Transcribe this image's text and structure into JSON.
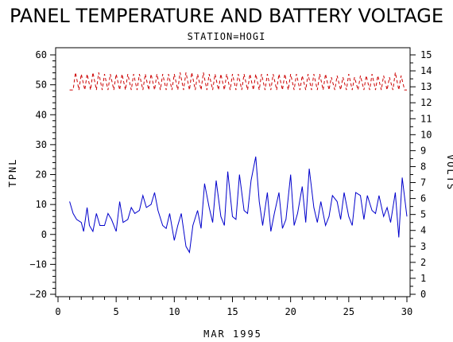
{
  "chart_data": {
    "type": "line",
    "title": "PANEL TEMPERATURE AND BATTERY VOLTAGE",
    "subtitle": "STATION=HOGI",
    "xlabel": "MAR 1995",
    "ylabel_left": "TPNL",
    "ylabel_right": "VOLTS",
    "xlim": [
      0,
      30
    ],
    "ylim_left": [
      -20,
      60
    ],
    "ylim_right": [
      0,
      15
    ],
    "x_ticks": [
      0,
      5,
      10,
      15,
      20,
      25,
      30
    ],
    "x_tick_labels": [
      "0",
      "5",
      "10",
      "15",
      "20",
      "25",
      "30"
    ],
    "y_left_ticks": [
      -20,
      -10,
      0,
      10,
      20,
      30,
      40,
      50,
      60
    ],
    "y_left_tick_labels": [
      "−20",
      "−10",
      "0",
      "10",
      "20",
      "30",
      "40",
      "50",
      "60"
    ],
    "y_right_ticks": [
      0,
      1,
      2,
      3,
      4,
      5,
      6,
      7,
      8,
      9,
      10,
      11,
      12,
      13,
      14,
      15
    ],
    "y_right_tick_labels": [
      "0",
      "1",
      "2",
      "3",
      "4",
      "5",
      "6",
      "7",
      "8",
      "9",
      "10",
      "11",
      "12",
      "13",
      "14",
      "15"
    ],
    "series": [
      {
        "axis": "left",
        "color": "#0000cc",
        "style": "solid",
        "x": [
          1.0,
          1.3,
          1.6,
          2.0,
          2.2,
          2.5,
          2.7,
          3.0,
          3.3,
          3.6,
          4.0,
          4.3,
          4.6,
          5.0,
          5.3,
          5.6,
          6.0,
          6.3,
          6.6,
          7.0,
          7.3,
          7.6,
          8.0,
          8.3,
          8.6,
          9.0,
          9.3,
          9.6,
          10.0,
          10.3,
          10.6,
          11.0,
          11.3,
          11.6,
          12.0,
          12.3,
          12.6,
          13.0,
          13.3,
          13.6,
          14.0,
          14.3,
          14.6,
          15.0,
          15.3,
          15.6,
          16.0,
          16.3,
          16.6,
          17.0,
          17.3,
          17.6,
          18.0,
          18.3,
          18.6,
          19.0,
          19.3,
          19.6,
          20.0,
          20.3,
          20.6,
          21.0,
          21.3,
          21.6,
          22.0,
          22.3,
          22.6,
          23.0,
          23.3,
          23.6,
          24.0,
          24.3,
          24.6,
          25.0,
          25.3,
          25.6,
          26.0,
          26.3,
          26.6,
          27.0,
          27.3,
          27.6,
          28.0,
          28.3,
          28.6,
          29.0,
          29.3,
          29.6,
          30.0
        ],
        "y": [
          11,
          7,
          5,
          4,
          1,
          9,
          3,
          1,
          7,
          3,
          3,
          7,
          5,
          1,
          11,
          4,
          5,
          9,
          7,
          8,
          13,
          9,
          10,
          14,
          8,
          3,
          2,
          7,
          -2,
          3,
          7,
          -4,
          -6,
          3,
          8,
          2,
          17,
          9,
          4,
          18,
          6,
          3,
          21,
          6,
          5,
          20,
          8,
          7,
          18,
          26,
          11,
          3,
          14,
          1,
          7,
          14,
          2,
          5,
          20,
          3,
          7,
          16,
          4,
          22,
          9,
          4,
          11,
          3,
          6,
          13,
          11,
          5,
          14,
          6,
          3,
          14,
          13,
          5,
          13,
          8,
          7,
          13,
          6,
          9,
          4,
          14,
          -1,
          19,
          6
        ],
        "values_note_hidden": ""
      },
      {
        "axis": "right",
        "color": "#cc0000",
        "style": "dashed",
        "x": [
          1.0,
          1.3,
          1.5,
          1.8,
          2.0,
          2.3,
          2.5,
          2.8,
          3.0,
          3.3,
          3.5,
          3.8,
          4.0,
          4.3,
          4.5,
          4.8,
          5.0,
          5.3,
          5.5,
          5.8,
          6.0,
          6.3,
          6.5,
          6.8,
          7.0,
          7.3,
          7.5,
          7.8,
          8.0,
          8.3,
          8.5,
          8.8,
          9.0,
          9.3,
          9.5,
          9.8,
          10.0,
          10.3,
          10.5,
          10.8,
          11.0,
          11.3,
          11.5,
          11.8,
          12.0,
          12.3,
          12.5,
          12.8,
          13.0,
          13.3,
          13.5,
          13.8,
          14.0,
          14.3,
          14.5,
          14.8,
          15.0,
          15.3,
          15.5,
          15.8,
          16.0,
          16.3,
          16.5,
          16.8,
          17.0,
          17.3,
          17.5,
          17.8,
          18.0,
          18.3,
          18.5,
          18.8,
          19.0,
          19.3,
          19.5,
          19.8,
          20.0,
          20.3,
          20.5,
          20.8,
          21.0,
          21.3,
          21.5,
          21.8,
          22.0,
          22.3,
          22.5,
          22.8,
          23.0,
          23.3,
          23.5,
          23.8,
          24.0,
          24.3,
          24.5,
          24.8,
          25.0,
          25.3,
          25.5,
          25.8,
          26.0,
          26.3,
          26.5,
          26.8,
          27.0,
          27.3,
          27.5,
          27.8,
          28.0,
          28.3,
          28.5,
          28.8,
          29.0,
          29.3,
          29.5,
          29.8,
          30.0
        ],
        "y": [
          12.8,
          12.8,
          13.9,
          12.8,
          13.8,
          12.8,
          13.8,
          12.8,
          13.9,
          12.8,
          13.9,
          12.8,
          13.8,
          12.8,
          13.8,
          12.8,
          13.8,
          12.8,
          13.8,
          12.8,
          13.8,
          12.8,
          13.8,
          12.8,
          13.8,
          12.8,
          13.8,
          12.8,
          13.8,
          12.8,
          13.8,
          12.8,
          13.8,
          12.8,
          13.8,
          12.8,
          13.8,
          12.8,
          13.9,
          12.8,
          13.9,
          12.8,
          13.9,
          12.8,
          13.8,
          12.8,
          13.9,
          12.8,
          13.8,
          12.8,
          13.8,
          12.8,
          13.8,
          12.8,
          13.8,
          12.8,
          13.8,
          12.8,
          13.8,
          12.8,
          13.8,
          12.8,
          13.8,
          12.8,
          13.8,
          12.8,
          13.8,
          12.8,
          13.8,
          12.8,
          13.8,
          12.8,
          13.8,
          12.8,
          13.8,
          12.8,
          13.8,
          12.8,
          13.8,
          12.8,
          13.7,
          12.8,
          13.8,
          12.8,
          13.8,
          12.8,
          13.8,
          12.8,
          13.8,
          12.8,
          13.6,
          12.8,
          13.7,
          12.8,
          13.6,
          12.8,
          13.8,
          12.8,
          13.6,
          12.8,
          13.7,
          12.8,
          13.7,
          12.8,
          13.8,
          12.8,
          13.7,
          12.8,
          13.7,
          12.8,
          13.6,
          12.8,
          13.9,
          12.8,
          13.7,
          12.8,
          12.8
        ]
      }
    ],
    "grid": false,
    "legend": "none"
  }
}
